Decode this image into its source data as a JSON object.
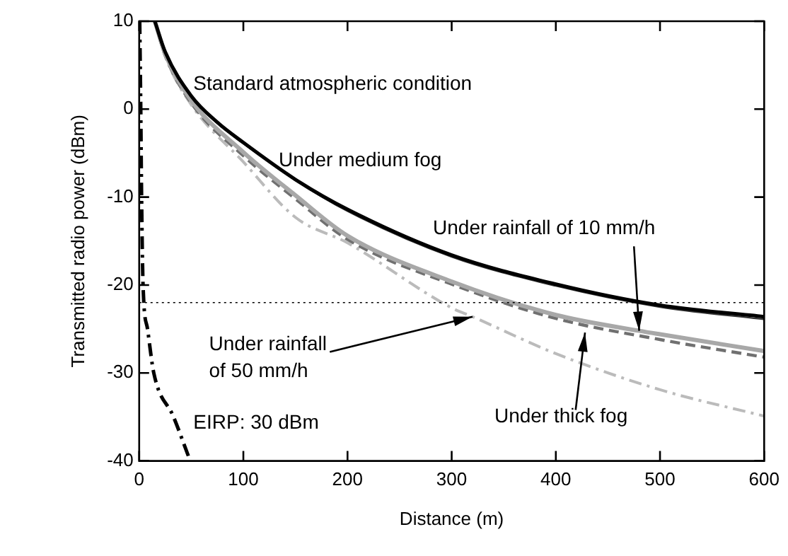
{
  "chart_data": {
    "type": "line",
    "xlabel": "Distance (m)",
    "ylabel": "Transmitted radio power (dBm)",
    "xlim": [
      0,
      600
    ],
    "xticks": [
      0,
      100,
      200,
      300,
      400,
      500,
      600
    ],
    "ylim": [
      -40,
      10
    ],
    "yticks": [
      -40,
      -30,
      -20,
      -10,
      0,
      10
    ],
    "annotations": [
      {
        "text": "Under rainfall of 10 mm/h",
        "x": 480,
        "y": -25.2
      },
      {
        "text": "Under rainfall of 50 mm/h",
        "x": 320,
        "y": -23.6
      }
    ],
    "grid": false,
    "legend": false,
    "marker": "none",
    "ref_lines": [
      {
        "axis": "y",
        "value": -22,
        "color": "#000000",
        "line_style": "dotted"
      }
    ],
    "series": [
      {
        "name": "Standard atmospheric condition",
        "color": "#000000",
        "line_style": "solid",
        "x": [
          15,
          25,
          50,
          75,
          100,
          150,
          200,
          300,
          400,
          500,
          600
        ],
        "values": [
          10,
          6.5,
          1.5,
          -1.5,
          -3.8,
          -8,
          -11.4,
          -16.6,
          -19.9,
          -22.3,
          -23.6
        ]
      },
      {
        "name": "Under medium fog",
        "color": "#333333",
        "line_style": "solid",
        "x": [
          15,
          25,
          50,
          75,
          100,
          150,
          200,
          300,
          400,
          500,
          600
        ],
        "values": [
          10,
          6.5,
          1.4,
          -1.6,
          -3.9,
          -8.1,
          -11.6,
          -16.8,
          -20.1,
          -22.5,
          -23.9
        ]
      },
      {
        "color": "#a8a8a8",
        "line_style": "solid",
        "x": [
          15,
          25,
          50,
          100,
          150,
          200,
          300,
          400,
          480,
          500,
          600
        ],
        "values": [
          10,
          6.3,
          1,
          -4.9,
          -9.8,
          -14.4,
          -19.6,
          -23.4,
          -25.2,
          -25.6,
          -27.5
        ]
      },
      {
        "name": "Under thick fog",
        "color": "#707070",
        "line_style": "dashed",
        "x": [
          15,
          25,
          50,
          100,
          150,
          200,
          300,
          400,
          500,
          600
        ],
        "values": [
          10,
          6.1,
          0.7,
          -5.3,
          -10.2,
          -14.8,
          -19.9,
          -23.8,
          -26.2,
          -28.2
        ]
      },
      {
        "color": "#bbbbbb",
        "line_style": "dashdot",
        "x": [
          15,
          25,
          50,
          100,
          150,
          200,
          300,
          320,
          400,
          500,
          600
        ],
        "values": [
          10,
          6,
          0.5,
          -6,
          -12.3,
          -15.2,
          -22.6,
          -23.6,
          -27.8,
          -31.9,
          -34.9
        ]
      },
      {
        "name": "EIRP: 30 dBm",
        "color": "#000000",
        "line_style": "dashdot",
        "x": [
          0.5,
          1.5,
          2.3,
          3.7,
          8,
          14,
          33,
          49
        ],
        "values": [
          10,
          0,
          -10,
          -20,
          -25,
          -30,
          -35,
          -40
        ]
      }
    ]
  }
}
